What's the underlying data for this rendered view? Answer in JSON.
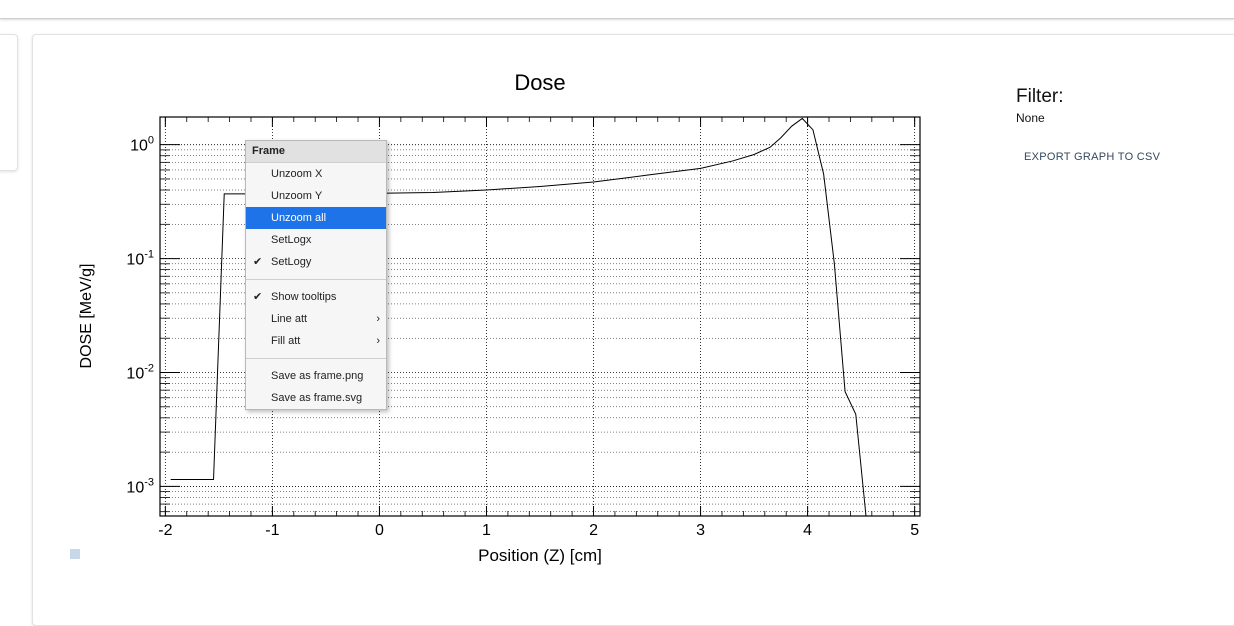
{
  "panel": {
    "filter_title": "Filter:",
    "filter_value": "None",
    "export_label": "EXPORT GRAPH TO CSV"
  },
  "chart_data": {
    "type": "line",
    "title": "Dose",
    "xlabel": "Position (Z) [cm]",
    "ylabel": "DOSE [MeV/g]",
    "xlim": [
      -2.05,
      5.05
    ],
    "ylim": [
      0.00055,
      1.75
    ],
    "yscale": "log",
    "grid": true,
    "x_ticks": [
      -2,
      -1,
      0,
      1,
      2,
      3,
      4,
      5
    ],
    "x_tick_labels": [
      "-2",
      "-1",
      "0",
      "1",
      "2",
      "3",
      "4",
      "5"
    ],
    "y_ticks": [
      {
        "value": 1,
        "base": "10",
        "exp": "0"
      },
      {
        "value": 0.1,
        "base": "10",
        "exp": "-1"
      },
      {
        "value": 0.01,
        "base": "10",
        "exp": "-2"
      },
      {
        "value": 0.001,
        "base": "10",
        "exp": "-3"
      }
    ],
    "x": [
      -1.95,
      -1.55,
      -1.45,
      -1.0,
      0.0,
      0.5,
      1.0,
      1.5,
      2.0,
      2.5,
      3.0,
      3.3,
      3.5,
      3.65,
      3.75,
      3.85,
      3.95,
      4.05,
      4.15,
      4.25,
      4.35,
      4.45,
      4.55
    ],
    "y": [
      0.00115,
      0.00115,
      0.37,
      0.37,
      0.375,
      0.38,
      0.4,
      0.43,
      0.47,
      0.54,
      0.62,
      0.72,
      0.82,
      0.95,
      1.15,
      1.45,
      1.7,
      1.35,
      0.55,
      0.09,
      0.0068,
      0.0043,
      0.0005
    ]
  },
  "context_menu": {
    "header": "Frame",
    "unzoom_x": "Unzoom X",
    "unzoom_y": "Unzoom Y",
    "unzoom_all": "Unzoom all",
    "set_logx": "SetLogx",
    "set_logy": "SetLogy",
    "show_tooltips": "Show tooltips",
    "line_att": "Line att",
    "fill_att": "Fill att",
    "save_png": "Save as frame.png",
    "save_svg": "Save as frame.svg",
    "check_glyph": "✔",
    "arrow_glyph": "›"
  }
}
